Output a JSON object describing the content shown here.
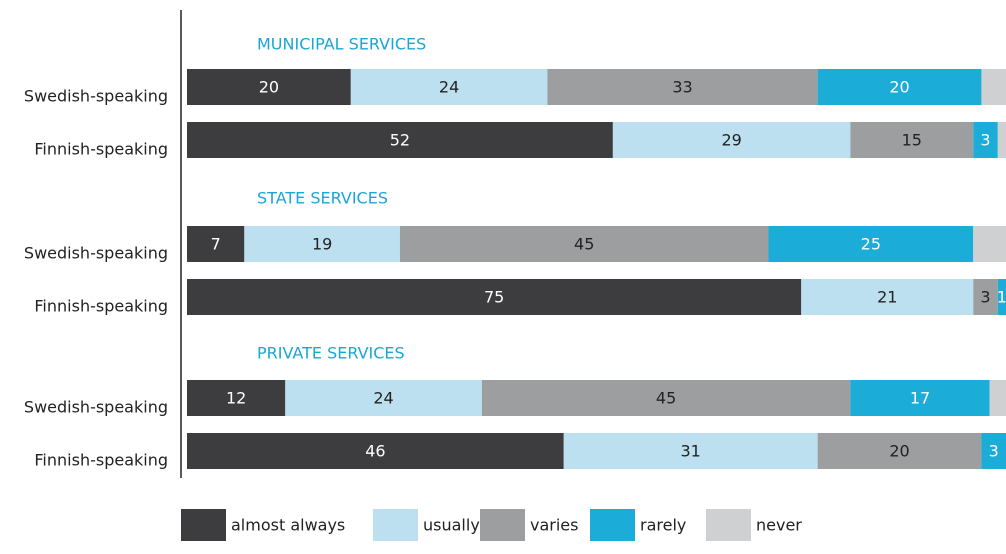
{
  "chart_data": {
    "type": "stacked-barh",
    "groups": [
      "MUNICIPAL SERVICES",
      "STATE SERVICES",
      "PRIVATE SERVICES"
    ],
    "categories": [
      "Swedish-speaking",
      "Finnish-speaking",
      "Swedish-speaking",
      "Finnish-speaking",
      "Swedish-speaking",
      "Finnish-speaking"
    ],
    "xlim": [
      0,
      100
    ],
    "series": [
      {
        "name": "almost always",
        "color": "#3d3d3f",
        "label_color": "#ffffff",
        "values": [
          20,
          52,
          7,
          75,
          12,
          46
        ]
      },
      {
        "name": "usually",
        "color": "#bde0f0",
        "label_color": "#222222",
        "values": [
          24,
          29,
          19,
          21,
          24,
          31
        ]
      },
      {
        "name": "varies",
        "color": "#9d9ea0",
        "label_color": "#222222",
        "values": [
          33,
          15,
          45,
          3,
          45,
          20
        ]
      },
      {
        "name": "rarely",
        "color": "#1badd8",
        "label_color": "#ffffff",
        "values": [
          20,
          3,
          25,
          1,
          17,
          3
        ]
      },
      {
        "name": "never",
        "color": "#cfd0d2",
        "show_labels": false,
        "values": [
          3,
          1,
          4,
          0,
          2,
          0
        ]
      }
    ],
    "legend": "bottom"
  }
}
